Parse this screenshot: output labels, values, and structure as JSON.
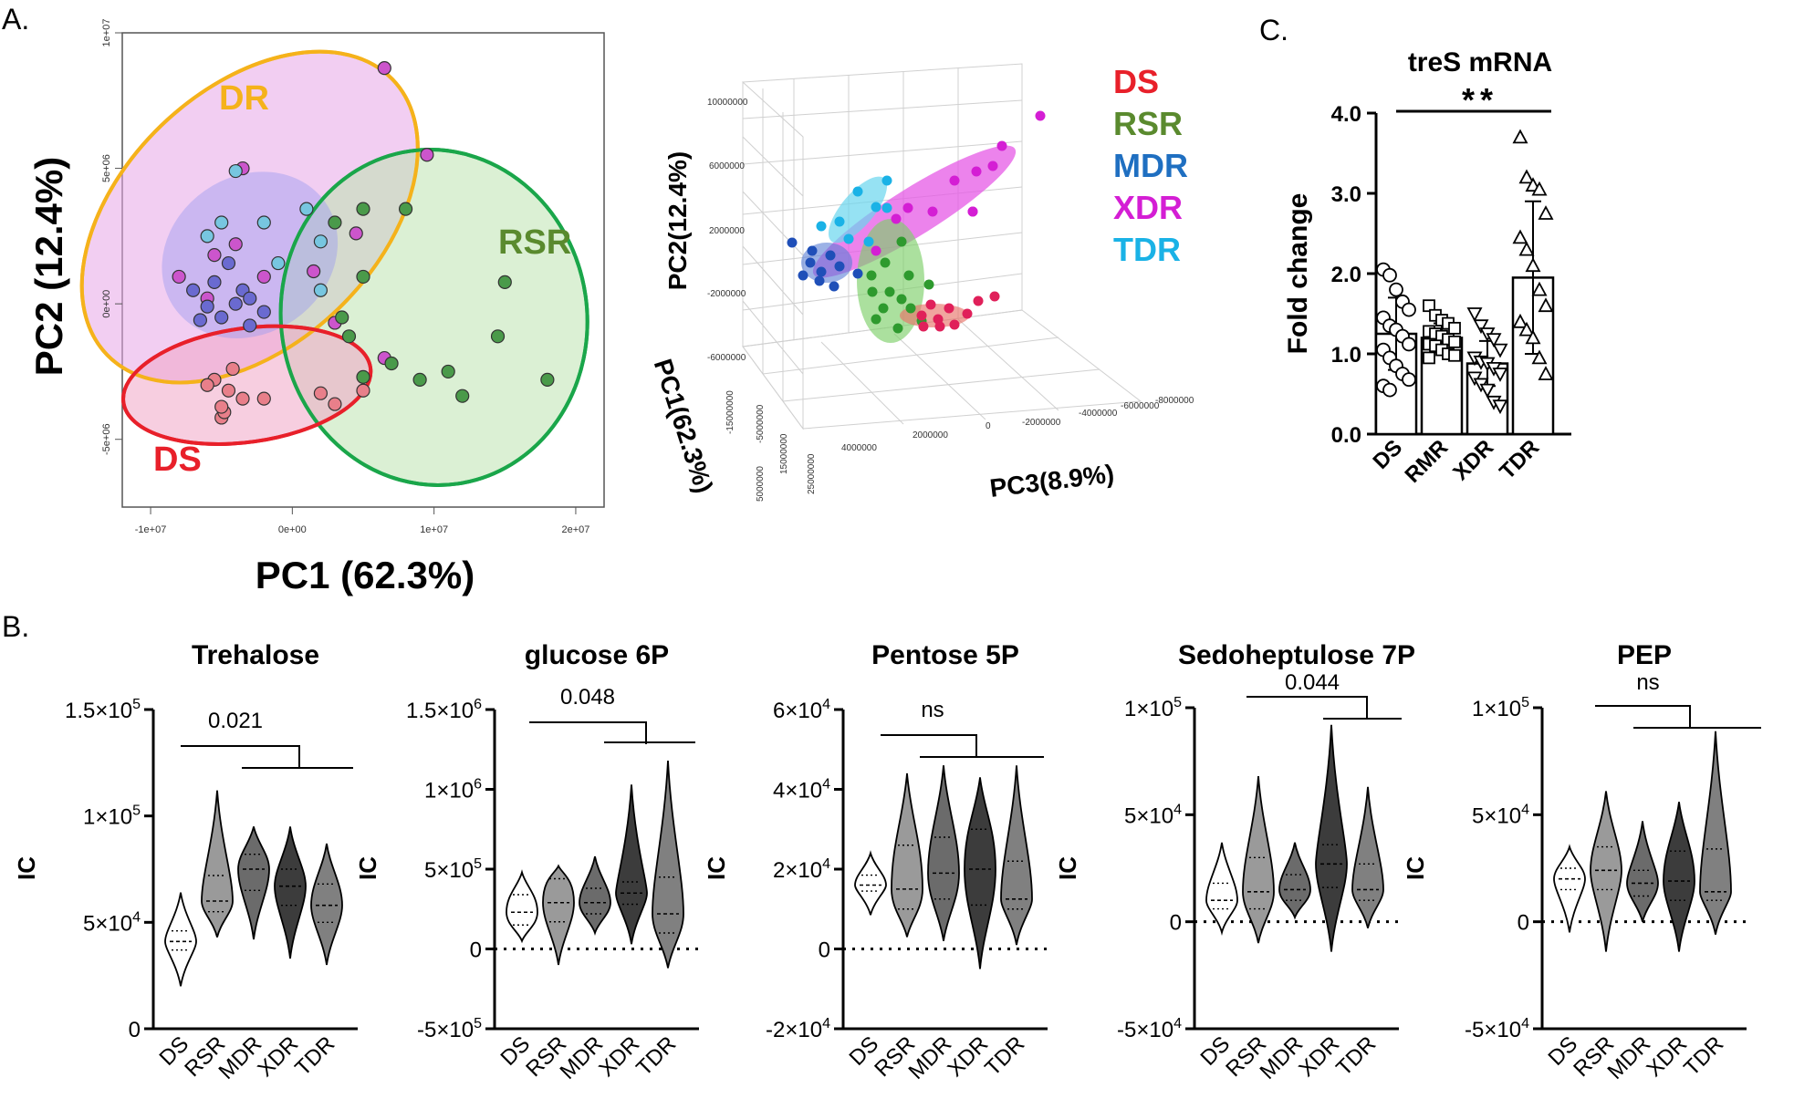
{
  "panel_labels": {
    "a": "A.",
    "b": "B.",
    "c": "C."
  },
  "colors": {
    "DS": "#e8202a",
    "RSR": "#5a8a2e",
    "MDR": "#1f6fc1",
    "XDR": "#d41ed4",
    "TDR": "#1ab2e6",
    "DR": "#f5b21b",
    "RSR_ellipse": "#1aa64a"
  },
  "chart_data": [
    {
      "id": "pca2d",
      "type": "scatter",
      "title": "",
      "xlabel": "PC1 (62.3%)",
      "ylabel": "PC2 (12.4%)",
      "xlim": [
        -12000000,
        22000000
      ],
      "ylim": [
        -7500000,
        10000000
      ],
      "xticks": [
        -10000000,
        0,
        10000000,
        20000000
      ],
      "xtick_labels": [
        "-1e+07",
        "0e+00",
        "1e+07",
        "2e+07"
      ],
      "yticks": [
        -5000000,
        0,
        5000000,
        10000000
      ],
      "ytick_labels": [
        "-5e+06",
        "0e+00",
        "5e+06",
        "1e+07"
      ],
      "group_labels": {
        "DR": "DR",
        "RSR": "RSR",
        "DS": "DS"
      },
      "ellipses": [
        {
          "group": "DR",
          "cx": -3000000,
          "cy": 3200000,
          "rx": 14000000,
          "ry": 4700000,
          "angle": -44,
          "fill": "#e8a6e8",
          "stroke": "#f5b21b"
        },
        {
          "group": "RSR",
          "cx": 10000000,
          "cy": -500000,
          "rx": 10800000,
          "ry": 6200000,
          "angle": -8,
          "fill": "#bde3b0",
          "stroke": "#1aa64a"
        },
        {
          "group": "DS",
          "cx": -3200000,
          "cy": -3000000,
          "rx": 8800000,
          "ry": 2100000,
          "angle": -8,
          "fill": "#f0a6c6",
          "stroke": "#e8202a"
        },
        {
          "group": "inner",
          "cx": -3000000,
          "cy": 1800000,
          "rx": 6500000,
          "ry": 2900000,
          "angle": -35,
          "fill": "#9c9cf0",
          "stroke": "none"
        }
      ],
      "series": [
        {
          "name": "DS",
          "color": "#e87f8a",
          "points": [
            [
              -5000000,
              -4200000
            ],
            [
              -4500000,
              -3200000
            ],
            [
              -5500000,
              -2800000
            ],
            [
              -4200000,
              -2400000
            ],
            [
              -4800000,
              -4000000
            ],
            [
              -6000000,
              -3000000
            ],
            [
              -3500000,
              -3500000
            ],
            [
              -2000000,
              -3500000
            ],
            [
              2000000,
              -3300000
            ],
            [
              3000000,
              -3700000
            ],
            [
              5000000,
              -3200000
            ],
            [
              -5000000,
              -3800000
            ]
          ]
        },
        {
          "name": "DR_magenta",
          "color": "#cc55cc",
          "points": [
            [
              -3500000,
              5000000
            ],
            [
              -4000000,
              2200000
            ],
            [
              -8000000,
              1000000
            ],
            [
              -6000000,
              200000
            ],
            [
              -2000000,
              1000000
            ],
            [
              1500000,
              1200000
            ],
            [
              3000000,
              -700000
            ],
            [
              4500000,
              2600000
            ],
            [
              6500000,
              8700000
            ],
            [
              9500000,
              5500000
            ],
            [
              6500000,
              -2000000
            ],
            [
              -5500000,
              1800000
            ]
          ]
        },
        {
          "name": "DR_blue",
          "color": "#6a6ad0",
          "points": [
            [
              -7000000,
              500000
            ],
            [
              -5000000,
              -500000
            ],
            [
              -4000000,
              0
            ],
            [
              -3000000,
              -800000
            ],
            [
              -2000000,
              -300000
            ],
            [
              -6000000,
              -100000
            ],
            [
              -5500000,
              800000
            ],
            [
              -3500000,
              500000
            ],
            [
              -6500000,
              -600000
            ],
            [
              -4500000,
              1500000
            ],
            [
              -3000000,
              200000
            ]
          ]
        },
        {
          "name": "DR_cyan",
          "color": "#77c6e0",
          "points": [
            [
              -5000000,
              3000000
            ],
            [
              -2000000,
              3000000
            ],
            [
              1000000,
              3500000
            ],
            [
              2000000,
              2300000
            ],
            [
              -6000000,
              2500000
            ],
            [
              -4000000,
              4900000
            ],
            [
              -1000000,
              1500000
            ],
            [
              2000000,
              500000
            ]
          ]
        },
        {
          "name": "RSR",
          "color": "#4a9a4a",
          "points": [
            [
              8000000,
              3500000
            ],
            [
              5000000,
              3500000
            ],
            [
              3000000,
              3000000
            ],
            [
              5000000,
              1000000
            ],
            [
              3500000,
              -500000
            ],
            [
              15000000,
              800000
            ],
            [
              14500000,
              -1200000
            ],
            [
              18000000,
              -2800000
            ],
            [
              11000000,
              -2500000
            ],
            [
              12000000,
              -3400000
            ],
            [
              9000000,
              -2800000
            ],
            [
              7000000,
              -2200000
            ],
            [
              4000000,
              -1200000
            ],
            [
              5000000,
              -2700000
            ]
          ]
        }
      ]
    },
    {
      "id": "pca3d",
      "type": "scatter",
      "xlabel": "PC1(62.3%)",
      "ylabel": "PC2(12.4%)",
      "zlabel": "PC3(8.9%)",
      "ytick_labels": [
        "10000000",
        "6000000",
        "2000000",
        "-2000000",
        "-6000000"
      ],
      "xtick_labels": [
        "-15000000",
        "-5000000",
        "5000000",
        "15000000",
        "25000000"
      ],
      "ztick_labels": [
        "4000000",
        "2000000",
        "0",
        "-2000000",
        "-4000000",
        "-6000000",
        "-8000000"
      ],
      "legend": [
        {
          "label": "DS",
          "color": "#e8202a"
        },
        {
          "label": "RSR",
          "color": "#5a8a2e"
        },
        {
          "label": "MDR",
          "color": "#1f6fc1"
        },
        {
          "label": "XDR",
          "color": "#d41ed4"
        },
        {
          "label": "TDR",
          "color": "#1ab2e6"
        }
      ]
    },
    {
      "id": "tres",
      "type": "bar",
      "title": "treS mRNA",
      "ylabel": "Fold change",
      "categories": [
        "DS",
        "RMR",
        "XDR",
        "TDR"
      ],
      "values": [
        1.25,
        1.2,
        0.88,
        1.95
      ],
      "errors": [
        0.45,
        0.18,
        0.28,
        0.95
      ],
      "ylim": [
        0,
        4.0
      ],
      "yticks": [
        0,
        1,
        2,
        3,
        4
      ],
      "ytick_labels": [
        "0.0",
        "1.0",
        "2.0",
        "3.0",
        "4.0"
      ],
      "markers": [
        "circle",
        "square",
        "triangle-down",
        "triangle-up"
      ],
      "points": [
        [
          2.05,
          1.98,
          1.8,
          1.65,
          1.55,
          1.45,
          1.35,
          1.3,
          1.22,
          1.12,
          1.05,
          0.95,
          0.85,
          0.75,
          0.68,
          0.6,
          0.55
        ],
        [
          1.6,
          1.48,
          1.42,
          1.38,
          1.32,
          1.28,
          1.25,
          1.22,
          1.18,
          1.15,
          1.12,
          1.1,
          1.05,
          1.0,
          0.98,
          0.95
        ],
        [
          1.5,
          1.35,
          1.25,
          1.18,
          1.05,
          0.95,
          0.9,
          0.88,
          0.82,
          0.75,
          0.7,
          0.62,
          0.55,
          0.4,
          0.35
        ],
        [
          3.7,
          3.2,
          3.1,
          3.05,
          2.75,
          2.45,
          2.3,
          2.1,
          1.8,
          1.6,
          1.4,
          1.3,
          1.2,
          0.95,
          0.75
        ]
      ],
      "significance": "**"
    },
    {
      "id": "trehalose",
      "type": "violin",
      "title": "Trehalose",
      "ylabel": "IC",
      "categories": [
        "DS",
        "RSR",
        "MDR",
        "XDR",
        "TDR"
      ],
      "ylim": [
        0,
        150000
      ],
      "yticks": [
        {
          "v": 0,
          "label": "0"
        },
        {
          "v": 50000,
          "m": "5",
          "e": "4"
        },
        {
          "v": 100000,
          "m": "1",
          "e": "5"
        },
        {
          "v": 150000,
          "m": "1.5",
          "e": "5"
        }
      ],
      "medians": [
        41000,
        60000,
        75000,
        67000,
        58000
      ],
      "q1": [
        37000,
        55000,
        65000,
        58000,
        50000
      ],
      "q3": [
        46000,
        72000,
        82000,
        75000,
        68000
      ],
      "min": [
        20000,
        43000,
        42000,
        33000,
        30000
      ],
      "max": [
        64000,
        112000,
        95000,
        95000,
        87000
      ],
      "annotation": "0.021"
    },
    {
      "id": "glucose6p",
      "type": "violin",
      "title": "glucose 6P",
      "ylabel": "IC",
      "categories": [
        "DS",
        "RSR",
        "MDR",
        "XDR",
        "TDR"
      ],
      "ylim": [
        -500000,
        1500000
      ],
      "yticks": [
        {
          "v": -500000,
          "m": "-5",
          "e": "5"
        },
        {
          "v": 0,
          "label": "0"
        },
        {
          "v": 500000,
          "m": "5",
          "e": "5"
        },
        {
          "v": 1000000,
          "m": "1",
          "e": "6"
        },
        {
          "v": 1500000,
          "m": "1.5",
          "e": "6"
        }
      ],
      "medians": [
        230000,
        290000,
        290000,
        350000,
        220000
      ],
      "q1": [
        150000,
        170000,
        220000,
        280000,
        100000
      ],
      "q3": [
        340000,
        440000,
        380000,
        420000,
        450000
      ],
      "min": [
        50000,
        -100000,
        100000,
        30000,
        -120000
      ],
      "max": [
        480000,
        520000,
        580000,
        1030000,
        1180000
      ],
      "annotation": "0.048"
    },
    {
      "id": "pentose5p",
      "type": "violin",
      "title": "Pentose 5P",
      "ylabel": "IC",
      "categories": [
        "DS",
        "RSR",
        "MDR",
        "XDR",
        "TDR"
      ],
      "ylim": [
        -20000,
        60000
      ],
      "yticks": [
        {
          "v": -20000,
          "m": "-2",
          "e": "4"
        },
        {
          "v": 0,
          "label": "0"
        },
        {
          "v": 20000,
          "m": "2",
          "e": "4"
        },
        {
          "v": 40000,
          "m": "4",
          "e": "4"
        },
        {
          "v": 60000,
          "m": "6",
          "e": "4"
        }
      ],
      "medians": [
        16000,
        15000,
        19000,
        20000,
        12500
      ],
      "q1": [
        14500,
        10000,
        12500,
        11000,
        10000
      ],
      "q3": [
        18500,
        26000,
        28000,
        30000,
        22000
      ],
      "min": [
        8500,
        3000,
        2000,
        -5000,
        1000
      ],
      "max": [
        24000,
        44000,
        46000,
        43000,
        46000
      ],
      "annotation": "ns"
    },
    {
      "id": "sedoheptulose7p",
      "type": "violin",
      "title": "Sedoheptulose 7P",
      "ylabel": "IC",
      "categories": [
        "DS",
        "RSR",
        "MDR",
        "XDR",
        "TDR"
      ],
      "ylim": [
        -50000,
        100000
      ],
      "yticks": [
        {
          "v": -50000,
          "m": "-5",
          "e": "4"
        },
        {
          "v": 0,
          "label": "0"
        },
        {
          "v": 50000,
          "m": "5",
          "e": "4"
        },
        {
          "v": 100000,
          "m": "1",
          "e": "5"
        }
      ],
      "medians": [
        10000,
        14000,
        15000,
        27000,
        15000
      ],
      "q1": [
        6000,
        6000,
        10000,
        16000,
        10000
      ],
      "q3": [
        18000,
        30000,
        22000,
        36000,
        27000
      ],
      "min": [
        -5000,
        -10000,
        2000,
        -14000,
        -3000
      ],
      "max": [
        37000,
        68000,
        37000,
        92000,
        63000
      ],
      "annotation": "0.044"
    },
    {
      "id": "pep",
      "type": "violin",
      "title": "PEP",
      "ylabel": "IC",
      "categories": [
        "DS",
        "RSR",
        "MDR",
        "XDR",
        "TDR"
      ],
      "ylim": [
        -50000,
        100000
      ],
      "yticks": [
        {
          "v": -50000,
          "m": "-5",
          "e": "4"
        },
        {
          "v": 0,
          "label": "0"
        },
        {
          "v": 50000,
          "m": "5",
          "e": "4"
        },
        {
          "v": 100000,
          "m": "1",
          "e": "5"
        }
      ],
      "medians": [
        20000,
        24000,
        18000,
        19000,
        14000
      ],
      "q1": [
        15000,
        15000,
        12000,
        10000,
        10000
      ],
      "q3": [
        25000,
        35000,
        24000,
        33000,
        34000
      ],
      "min": [
        -5000,
        -14000,
        0,
        -14000,
        -6000
      ],
      "max": [
        35000,
        61000,
        47000,
        56000,
        89000
      ],
      "annotation": "ns"
    }
  ]
}
